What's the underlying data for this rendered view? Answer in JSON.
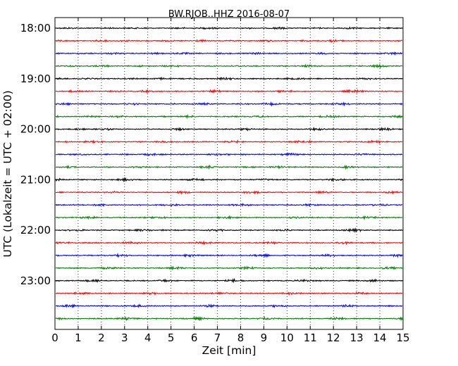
{
  "chart_data": {
    "type": "line",
    "title": "BW.RJOB..HHZ 2016-08-07",
    "xlabel": "Zeit  [min]",
    "ylabel": "UTC (Lokalzeit = UTC + 02:00)",
    "xlim": [
      0,
      15
    ],
    "x_ticks": [
      "0",
      "1",
      "2",
      "3",
      "4",
      "5",
      "6",
      "7",
      "8",
      "9",
      "10",
      "11",
      "12",
      "13",
      "14",
      "15"
    ],
    "y_ticks": [
      "18:00",
      "19:00",
      "20:00",
      "21:00",
      "22:00",
      "23:00"
    ],
    "grid": "vertical dotted lines at each minute",
    "trace_interval_minutes": 15,
    "trace_start": "18:00",
    "trace_count": 24,
    "color_cycle": [
      "#000000",
      "#ff0000",
      "#0000ff",
      "#007f00"
    ],
    "series_description": "Seismogram traces, one per 15-minute window, no printed amplitude scale"
  }
}
